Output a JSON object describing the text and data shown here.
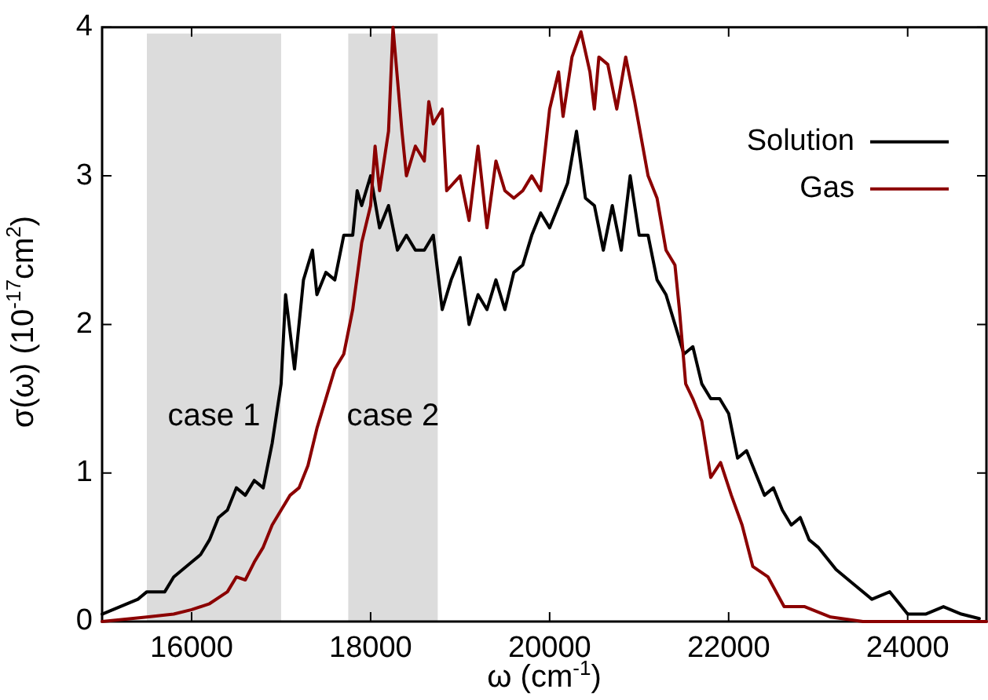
{
  "chart_data": {
    "type": "line",
    "xlabel": "ω (cm$^{-1}$)",
    "ylabel": "σ(ω) (10$^{-17}$cm$^{2}$)",
    "xlim": [
      15000,
      24880
    ],
    "xticks": [
      16000,
      18000,
      20000,
      22000,
      24000
    ],
    "ylim": [
      0,
      4
    ],
    "yticks": [
      0,
      1,
      2,
      3,
      4
    ],
    "grid": false,
    "legend": "top right",
    "marker": "none",
    "line_style": "solid",
    "bands": [
      {
        "axis": "x",
        "from": 15500,
        "to": 17000,
        "color": "#dcdcdc",
        "label": "case 1"
      },
      {
        "axis": "x",
        "from": 17750,
        "to": 18750,
        "color": "#dcdcdc",
        "label": "case 2"
      }
    ],
    "series": [
      {
        "name": "Solution",
        "color": "#000000",
        "x": [
          15000,
          15200,
          15400,
          15500,
          15600,
          15700,
          15800,
          15900,
          16000,
          16100,
          16200,
          16300,
          16400,
          16500,
          16600,
          16700,
          16800,
          16900,
          17000,
          17050,
          17150,
          17250,
          17350,
          17400,
          17500,
          17600,
          17700,
          17800,
          17850,
          17900,
          18000,
          18100,
          18200,
          18300,
          18400,
          18500,
          18600,
          18700,
          18800,
          18900,
          19000,
          19100,
          19200,
          19300,
          19400,
          19500,
          19600,
          19700,
          19800,
          19900,
          20000,
          20100,
          20200,
          20300,
          20400,
          20500,
          20600,
          20700,
          20800,
          20900,
          21000,
          21100,
          21200,
          21300,
          21400,
          21500,
          21600,
          21700,
          21800,
          21900,
          22000,
          22100,
          22200,
          22300,
          22400,
          22500,
          22600,
          22700,
          22800,
          22900,
          23000,
          23200,
          23400,
          23600,
          23800,
          24000,
          24200,
          24400,
          24600,
          24800
        ],
        "values": [
          0.05,
          0.1,
          0.15,
          0.2,
          0.2,
          0.2,
          0.3,
          0.35,
          0.4,
          0.45,
          0.55,
          0.7,
          0.75,
          0.9,
          0.85,
          0.95,
          0.9,
          1.2,
          1.6,
          2.2,
          1.7,
          2.3,
          2.5,
          2.2,
          2.35,
          2.3,
          2.6,
          2.6,
          2.9,
          2.8,
          3.0,
          2.65,
          2.8,
          2.5,
          2.6,
          2.5,
          2.5,
          2.6,
          2.1,
          2.3,
          2.45,
          2.0,
          2.2,
          2.1,
          2.3,
          2.1,
          2.35,
          2.4,
          2.6,
          2.75,
          2.65,
          2.8,
          2.95,
          3.3,
          2.85,
          2.8,
          2.5,
          2.8,
          2.5,
          3.0,
          2.6,
          2.6,
          2.3,
          2.2,
          2.0,
          1.8,
          1.85,
          1.6,
          1.5,
          1.5,
          1.4,
          1.1,
          1.15,
          1.0,
          0.85,
          0.9,
          0.75,
          0.65,
          0.7,
          0.55,
          0.5,
          0.35,
          0.25,
          0.15,
          0.2,
          0.05,
          0.05,
          0.1,
          0.05,
          0.02
        ]
      },
      {
        "name": "Gas",
        "color": "#8b0000",
        "x": [
          15000,
          15500,
          15800,
          16000,
          16200,
          16400,
          16500,
          16600,
          16700,
          16800,
          16900,
          17000,
          17100,
          17200,
          17300,
          17400,
          17500,
          17600,
          17700,
          17800,
          17900,
          18000,
          18050,
          18100,
          18200,
          18250,
          18350,
          18400,
          18500,
          18600,
          18650,
          18700,
          18800,
          18850,
          19000,
          19100,
          19200,
          19300,
          19400,
          19500,
          19600,
          19700,
          19800,
          19900,
          20000,
          20100,
          20150,
          20250,
          20350,
          20450,
          20500,
          20550,
          20650,
          20750,
          20850,
          20950,
          21100,
          21200,
          21300,
          21400,
          21450,
          21520,
          21600,
          21700,
          21800,
          21910,
          22030,
          22150,
          22270,
          22440,
          22620,
          22850,
          23140,
          23500,
          24000,
          24880
        ],
        "values": [
          0,
          0.03,
          0.05,
          0.08,
          0.12,
          0.2,
          0.3,
          0.28,
          0.4,
          0.5,
          0.65,
          0.75,
          0.85,
          0.9,
          1.05,
          1.3,
          1.5,
          1.7,
          1.8,
          2.1,
          2.55,
          2.8,
          3.2,
          2.9,
          3.3,
          4.0,
          3.3,
          3.0,
          3.2,
          3.1,
          3.5,
          3.35,
          3.45,
          2.9,
          3.0,
          2.7,
          3.2,
          2.65,
          3.1,
          2.9,
          2.85,
          2.9,
          3.0,
          2.9,
          3.45,
          3.7,
          3.4,
          3.8,
          3.97,
          3.7,
          3.45,
          3.8,
          3.75,
          3.45,
          3.8,
          3.5,
          3.0,
          2.85,
          2.5,
          2.4,
          2.1,
          1.6,
          1.5,
          1.35,
          0.97,
          1.07,
          0.85,
          0.65,
          0.37,
          0.3,
          0.1,
          0.1,
          0.03,
          0,
          0,
          0
        ]
      }
    ]
  }
}
